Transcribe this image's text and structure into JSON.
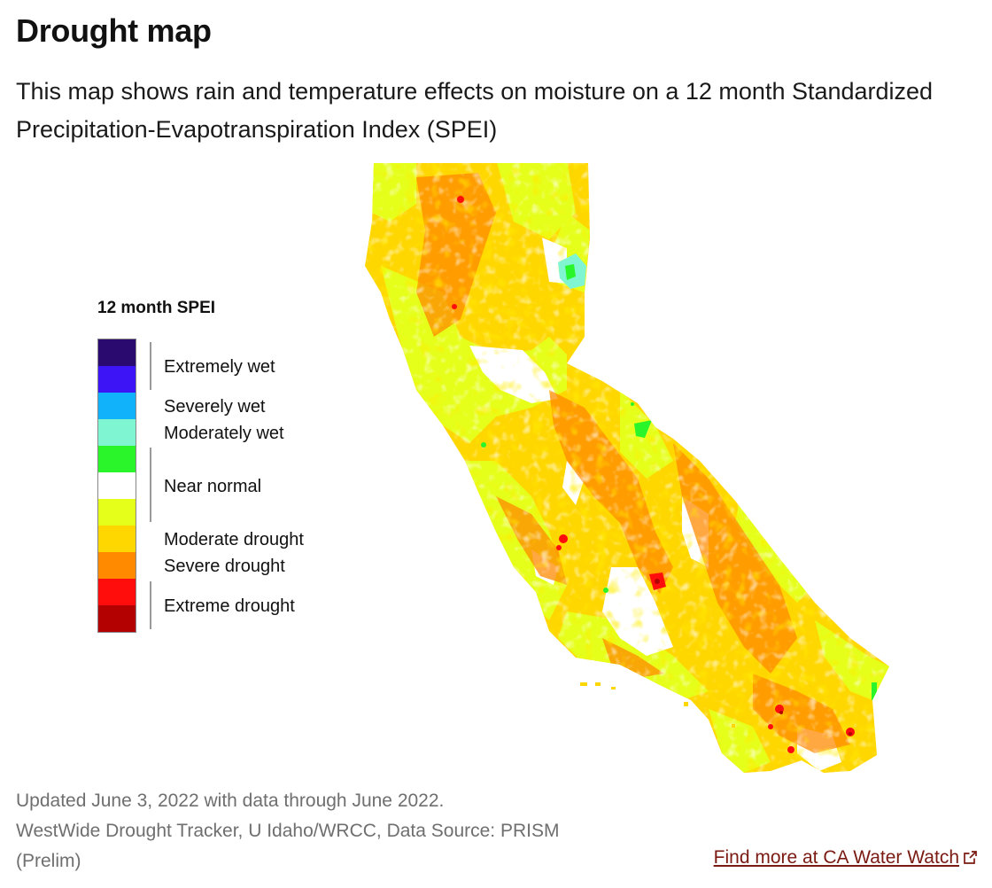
{
  "header": {
    "title": "Drought map",
    "description": "This map shows rain and temperature effects on moisture on a 12 month Standardized Precipitation-Evapotranspiration Index (SPEI)"
  },
  "map": {
    "region": "California",
    "legend": {
      "title": "12 month SPEI",
      "swatches": [
        "#2a0a6e",
        "#3d14f5",
        "#12b2fb",
        "#7ff5d2",
        "#2af52b",
        "#ffffff",
        "#e6ff1a",
        "#ffd700",
        "#ff8a00",
        "#ff0d0d",
        "#b30000"
      ],
      "labels": [
        "Extremely wet",
        "Severely wet",
        "Moderately wet",
        "Near normal",
        "Moderate drought",
        "Severe drought",
        "Extreme drought"
      ]
    },
    "colors": {
      "near_normal": "#ffffff",
      "abnormally_dry": "#e6ff1a",
      "moderate_drought": "#ffd700",
      "severe_drought": "#ff8a00",
      "extreme_drought": "#ff0d0d",
      "exceptional_drought": "#b30000",
      "moderately_wet": "#2af52b",
      "wet_cyan": "#7ff5d2"
    }
  },
  "footer": {
    "updated": "Updated June 3, 2022 with data through June 2022.",
    "source": "WestWide Drought Tracker, U Idaho/WRCC, Data Source: PRISM (Prelim)",
    "link_label": "Find more at CA Water Watch",
    "link_icon": "external-link-icon"
  }
}
